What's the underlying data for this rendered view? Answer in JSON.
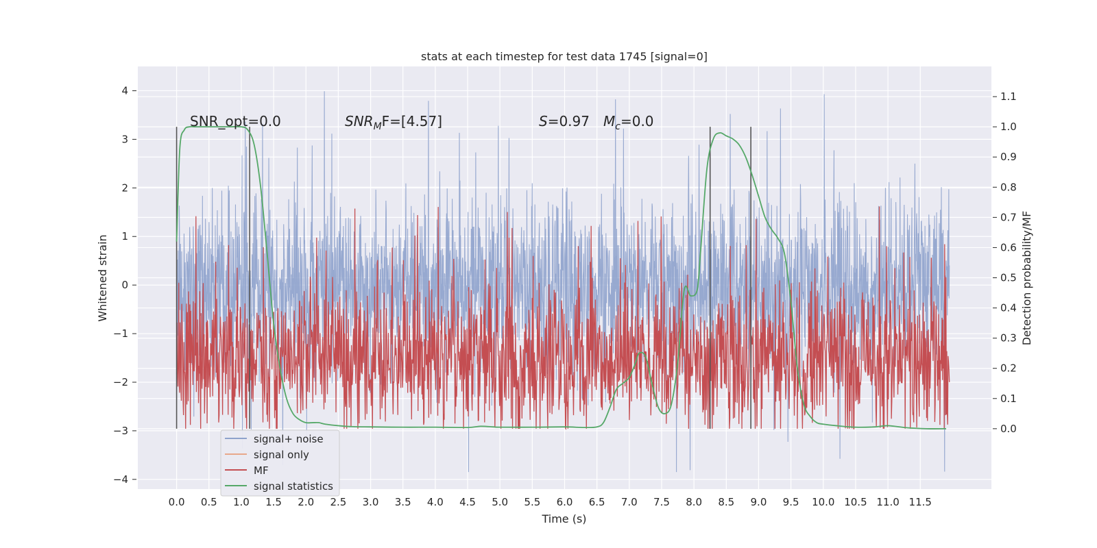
{
  "chart_data": {
    "type": "line",
    "title": "stats at each timestep for test data 1745 [signal=0]",
    "xlabel": "Time (s)",
    "ylabel_left": "Whitened strain",
    "ylabel_right": "Detection probability/MF",
    "xlim": [
      -0.6,
      12.6
    ],
    "ylim_left": [
      -4.2,
      4.5
    ],
    "ylim_right": [
      -0.2,
      1.2
    ],
    "x_ticks": [
      "0.0",
      "0.5",
      "1.0",
      "1.5",
      "2.0",
      "2.5",
      "3.0",
      "3.5",
      "4.0",
      "4.5",
      "5.0",
      "5.5",
      "6.0",
      "6.5",
      "7.0",
      "7.5",
      "8.0",
      "8.5",
      "9.0",
      "9.5",
      "10.0",
      "10.5",
      "11.0",
      "11.5"
    ],
    "y_ticks_left": [
      "4",
      "3",
      "2",
      "1",
      "0",
      "−1",
      "−2",
      "−3",
      "−4"
    ],
    "y_ticks_right": [
      "1.1",
      "1.0",
      "0.9",
      "0.8",
      "0.7",
      "0.6",
      "0.5",
      "0.4",
      "0.3",
      "0.2",
      "0.1",
      "0.0"
    ],
    "grid": true,
    "legend_position": "lower-left",
    "annotations": {
      "snr_opt": "SNR_opt=0.0",
      "snr_mf_main": "SNR",
      "snr_mf_sub": "M",
      "snr_mf_tail": "F=[4.57]",
      "s_main": "S",
      "s_tail": "=0.97",
      "mc_main": "M",
      "mc_sub": "c",
      "mc_tail": "=0.0"
    },
    "vertical_markers": [
      0.0,
      1.13,
      8.25,
      8.88
    ],
    "series": [
      {
        "name": "signal+ noise",
        "color": "#8ea2cc",
        "style": "noise band centered at 0, std ~0.9, spikes to about +4.1 / -3.8"
      },
      {
        "name": "signal only",
        "color": "#e8a88a",
        "values": []
      },
      {
        "name": "MF",
        "color": "#c44e52",
        "range": [
          0.0,
          0.75
        ]
      },
      {
        "name": "signal statistics",
        "color": "#55a868",
        "x": [
          0.0,
          0.05,
          0.12,
          0.2,
          0.3,
          0.5,
          0.8,
          1.0,
          1.1,
          1.2,
          1.3,
          1.4,
          1.5,
          1.6,
          1.7,
          1.8,
          1.9,
          2.0,
          2.1,
          2.2,
          2.3,
          2.5,
          2.7,
          3.0,
          3.5,
          4.0,
          4.5,
          4.7,
          4.9,
          5.0,
          5.5,
          6.0,
          6.3,
          6.5,
          6.6,
          6.7,
          6.8,
          6.9,
          7.0,
          7.1,
          7.15,
          7.25,
          7.35,
          7.45,
          7.55,
          7.65,
          7.75,
          7.85,
          7.95,
          8.05,
          8.1,
          8.2,
          8.3,
          8.4,
          8.5,
          8.6,
          8.7,
          8.8,
          8.9,
          9.0,
          9.1,
          9.2,
          9.3,
          9.4,
          9.5,
          9.6,
          9.7,
          9.8,
          9.9,
          10.0,
          10.2,
          10.5,
          10.8,
          11.0,
          11.3,
          11.6,
          11.9
        ],
        "y": [
          0.62,
          0.93,
          0.99,
          1.0,
          1.0,
          1.0,
          1.0,
          1.0,
          0.99,
          0.94,
          0.8,
          0.58,
          0.35,
          0.2,
          0.1,
          0.05,
          0.03,
          0.02,
          0.02,
          0.02,
          0.015,
          0.01,
          0.007,
          0.006,
          0.005,
          0.005,
          0.004,
          0.008,
          0.006,
          0.005,
          0.005,
          0.006,
          0.004,
          0.006,
          0.02,
          0.07,
          0.13,
          0.15,
          0.17,
          0.22,
          0.25,
          0.24,
          0.15,
          0.07,
          0.05,
          0.08,
          0.22,
          0.46,
          0.44,
          0.46,
          0.58,
          0.86,
          0.96,
          0.98,
          0.97,
          0.96,
          0.94,
          0.9,
          0.84,
          0.77,
          0.7,
          0.66,
          0.63,
          0.58,
          0.42,
          0.2,
          0.08,
          0.04,
          0.02,
          0.015,
          0.01,
          0.005,
          0.006,
          0.01,
          0.003,
          0.0,
          0.0
        ]
      }
    ]
  }
}
